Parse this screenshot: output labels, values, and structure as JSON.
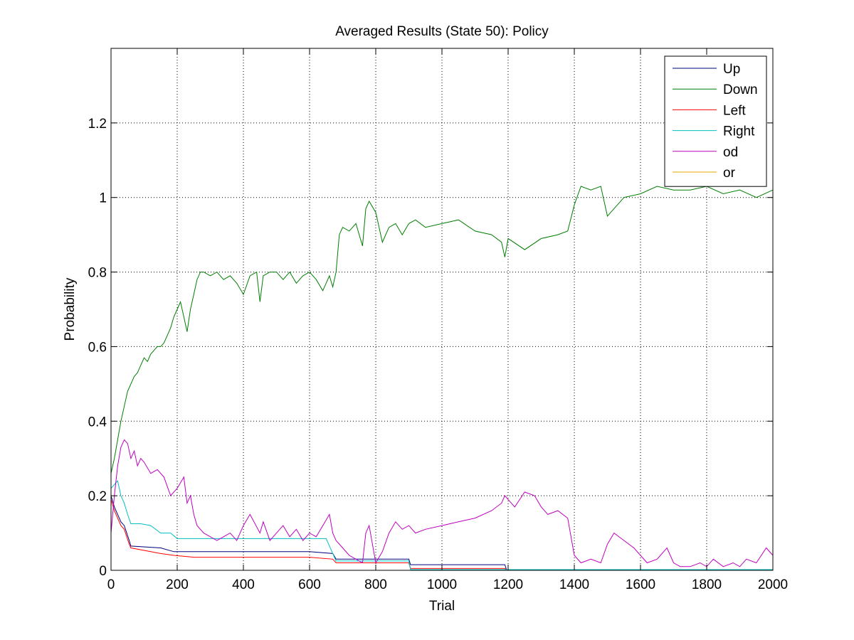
{
  "chart_data": {
    "type": "line",
    "title": "Averaged Results (State 50): Policy",
    "xlabel": "Trial",
    "ylabel": "Probability",
    "xlim": [
      0,
      2000
    ],
    "ylim": [
      0,
      1.4
    ],
    "xticks": [
      0,
      200,
      400,
      600,
      800,
      1000,
      1200,
      1400,
      1600,
      1800,
      2000
    ],
    "yticks": [
      0,
      0.2,
      0.4,
      0.6,
      0.8,
      1,
      1.2
    ],
    "xtick_labels": [
      "0",
      "200",
      "400",
      "600",
      "800",
      "1000",
      "1200",
      "1400",
      "1600",
      "1800",
      "2000"
    ],
    "ytick_labels": [
      "0",
      "0.2",
      "0.4",
      "0.6",
      "0.8",
      "1",
      "1.2"
    ],
    "grid": true,
    "legend_position": "top-right",
    "series": [
      {
        "name": "Up",
        "color": "#00007f",
        "x": [
          0,
          10,
          20,
          30,
          40,
          55,
          60,
          150,
          190,
          250,
          400,
          600,
          670,
          680,
          700,
          900,
          905,
          1190,
          1195,
          2000
        ],
        "y": [
          0.2,
          0.17,
          0.15,
          0.13,
          0.12,
          0.08,
          0.065,
          0.06,
          0.05,
          0.05,
          0.05,
          0.05,
          0.045,
          0.03,
          0.03,
          0.03,
          0.015,
          0.015,
          0.002,
          0.002
        ]
      },
      {
        "name": "Down",
        "color": "#007f00",
        "x": [
          0,
          10,
          20,
          30,
          40,
          50,
          60,
          70,
          80,
          90,
          100,
          110,
          120,
          130,
          140,
          150,
          160,
          170,
          180,
          190,
          200,
          210,
          220,
          230,
          240,
          250,
          260,
          270,
          280,
          300,
          320,
          340,
          360,
          380,
          400,
          420,
          440,
          450,
          460,
          480,
          500,
          520,
          540,
          560,
          580,
          600,
          620,
          640,
          660,
          670,
          680,
          690,
          700,
          720,
          740,
          760,
          770,
          780,
          800,
          820,
          840,
          860,
          880,
          900,
          920,
          950,
          1000,
          1050,
          1100,
          1150,
          1180,
          1190,
          1200,
          1250,
          1300,
          1350,
          1380,
          1400,
          1420,
          1450,
          1480,
          1500,
          1520,
          1550,
          1600,
          1650,
          1700,
          1750,
          1800,
          1850,
          1900,
          1950,
          2000
        ],
        "y": [
          0.26,
          0.3,
          0.35,
          0.4,
          0.44,
          0.48,
          0.5,
          0.52,
          0.53,
          0.55,
          0.57,
          0.56,
          0.58,
          0.59,
          0.6,
          0.6,
          0.61,
          0.63,
          0.65,
          0.68,
          0.7,
          0.72,
          0.68,
          0.64,
          0.7,
          0.74,
          0.78,
          0.8,
          0.8,
          0.79,
          0.8,
          0.78,
          0.79,
          0.77,
          0.74,
          0.79,
          0.8,
          0.72,
          0.79,
          0.8,
          0.8,
          0.78,
          0.8,
          0.77,
          0.79,
          0.8,
          0.78,
          0.75,
          0.79,
          0.76,
          0.8,
          0.9,
          0.92,
          0.91,
          0.93,
          0.87,
          0.97,
          0.99,
          0.96,
          0.88,
          0.92,
          0.93,
          0.9,
          0.93,
          0.94,
          0.92,
          0.93,
          0.94,
          0.91,
          0.9,
          0.88,
          0.84,
          0.89,
          0.86,
          0.89,
          0.9,
          0.91,
          0.98,
          1.03,
          1.02,
          1.03,
          0.95,
          0.97,
          1.0,
          1.01,
          1.03,
          1.02,
          1.02,
          1.03,
          1.01,
          1.02,
          1.0,
          1.02
        ]
      },
      {
        "name": "Left",
        "color": "#ff0000",
        "x": [
          0,
          10,
          20,
          30,
          40,
          55,
          60,
          150,
          190,
          250,
          400,
          600,
          670,
          680,
          700,
          900,
          905,
          1190,
          1195,
          2000
        ],
        "y": [
          0.19,
          0.16,
          0.14,
          0.12,
          0.11,
          0.07,
          0.06,
          0.045,
          0.04,
          0.035,
          0.035,
          0.035,
          0.03,
          0.02,
          0.02,
          0.02,
          0.005,
          0.005,
          0.002,
          0.002
        ]
      },
      {
        "name": "Right",
        "color": "#00bfbf",
        "x": [
          0,
          10,
          20,
          30,
          40,
          50,
          60,
          90,
          120,
          150,
          180,
          200,
          300,
          400,
          500,
          600,
          650,
          680,
          700,
          800,
          900,
          905,
          1000,
          1200,
          1400,
          2000
        ],
        "y": [
          0.22,
          0.23,
          0.24,
          0.2,
          0.18,
          0.15,
          0.125,
          0.125,
          0.12,
          0.1,
          0.1,
          0.085,
          0.085,
          0.085,
          0.085,
          0.085,
          0.085,
          0.025,
          0.025,
          0.025,
          0.025,
          0.002,
          0.002,
          0.002,
          0.002,
          0.002
        ]
      },
      {
        "name": "od",
        "color": "#bf00bf",
        "x": [
          0,
          10,
          20,
          30,
          40,
          50,
          60,
          70,
          80,
          90,
          100,
          120,
          140,
          160,
          180,
          200,
          220,
          230,
          240,
          250,
          260,
          280,
          300,
          320,
          340,
          360,
          380,
          400,
          420,
          450,
          460,
          480,
          500,
          520,
          540,
          560,
          580,
          600,
          620,
          640,
          660,
          670,
          680,
          700,
          720,
          740,
          760,
          770,
          780,
          800,
          820,
          840,
          860,
          880,
          900,
          920,
          950,
          1000,
          1050,
          1100,
          1150,
          1180,
          1190,
          1200,
          1220,
          1250,
          1280,
          1300,
          1320,
          1350,
          1380,
          1400,
          1420,
          1450,
          1480,
          1500,
          1520,
          1550,
          1580,
          1600,
          1620,
          1650,
          1680,
          1700,
          1720,
          1750,
          1780,
          1800,
          1820,
          1850,
          1880,
          1900,
          1920,
          1950,
          1980,
          2000
        ],
        "y": [
          0.1,
          0.2,
          0.28,
          0.33,
          0.35,
          0.34,
          0.3,
          0.32,
          0.28,
          0.3,
          0.29,
          0.26,
          0.27,
          0.25,
          0.2,
          0.22,
          0.25,
          0.18,
          0.2,
          0.15,
          0.12,
          0.1,
          0.09,
          0.08,
          0.09,
          0.1,
          0.08,
          0.12,
          0.15,
          0.1,
          0.13,
          0.08,
          0.1,
          0.12,
          0.09,
          0.11,
          0.08,
          0.1,
          0.09,
          0.12,
          0.15,
          0.1,
          0.08,
          0.06,
          0.04,
          0.03,
          0.02,
          0.1,
          0.12,
          0.02,
          0.05,
          0.1,
          0.13,
          0.11,
          0.12,
          0.1,
          0.11,
          0.12,
          0.13,
          0.14,
          0.16,
          0.18,
          0.2,
          0.19,
          0.17,
          0.21,
          0.2,
          0.17,
          0.15,
          0.16,
          0.14,
          0.04,
          0.02,
          0.03,
          0.02,
          0.07,
          0.1,
          0.08,
          0.06,
          0.04,
          0.02,
          0.03,
          0.06,
          0.02,
          0.01,
          0.01,
          0.02,
          0.01,
          0.03,
          0.01,
          0.02,
          0.01,
          0.03,
          0.02,
          0.06,
          0.04
        ]
      },
      {
        "name": "or",
        "color": "#e5a800",
        "x": [
          0,
          2000
        ],
        "y": [
          0.0,
          0.0
        ]
      }
    ]
  }
}
